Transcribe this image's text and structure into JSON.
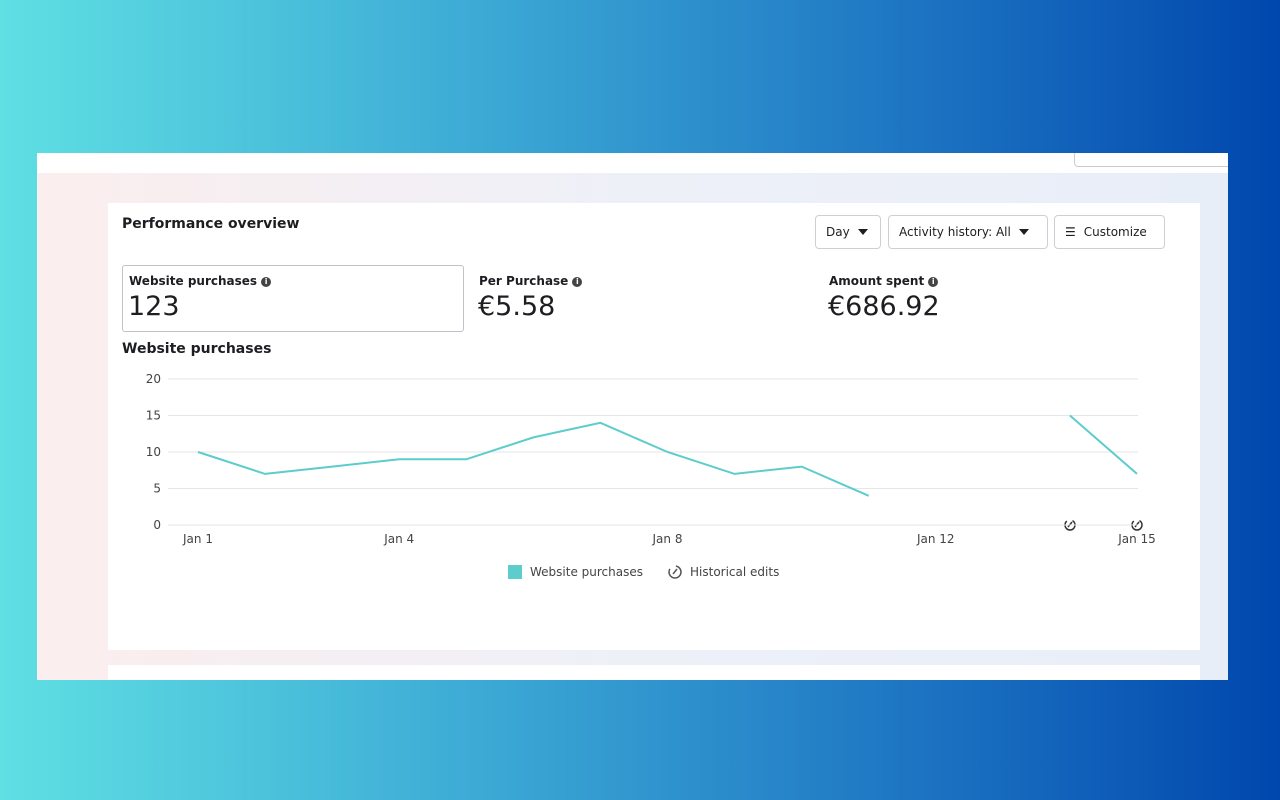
{
  "header": {
    "title": "Performance overview",
    "buttons": [
      "Day",
      "Activity history: All",
      "Customize"
    ]
  },
  "metrics": [
    {
      "label": "Website purchases",
      "value": "123"
    },
    {
      "label": "Per Purchase",
      "value": "€5.58"
    },
    {
      "label": "Amount spent",
      "value": "€686.92"
    }
  ],
  "chart_data": {
    "type": "line",
    "title": "Website purchases",
    "categories": [
      "Jan 1",
      null,
      null,
      "Jan 4",
      null,
      null,
      null,
      "Jan 8",
      null,
      null,
      null,
      "Jan 12",
      null,
      null,
      "Jan 15"
    ],
    "series": [
      {
        "name": "Website purchases",
        "color": "#5ccccc",
        "values": [
          10,
          7,
          8,
          9,
          9,
          12,
          14,
          10,
          7,
          8,
          4,
          null,
          null,
          15,
          7
        ]
      }
    ],
    "ylim": [
      0,
      20
    ],
    "yticks": [
      0,
      5,
      10,
      15,
      20
    ],
    "grid": true
  },
  "legend_extra": {
    "historical_edits": "Historical edits"
  }
}
